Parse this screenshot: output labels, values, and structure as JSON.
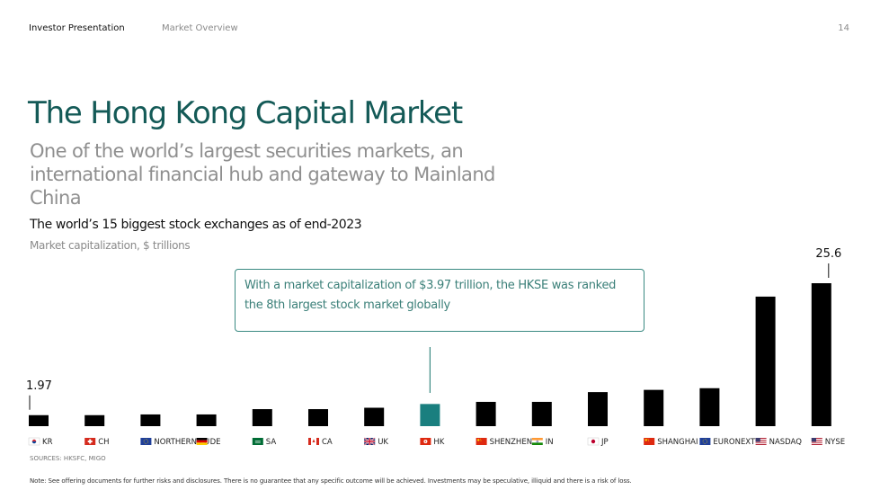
{
  "header": {
    "doc_title": "Investor Presentation",
    "section": "Market Overview",
    "page_number": "14"
  },
  "slide": {
    "title": "The Hong Kong Capital Market",
    "subtitle": "One of the world’s largest securities markets, an international financial hub and gateway to Mainland China"
  },
  "callout": {
    "text": "With a market capitalization of $3.97 trillion, the HKSE was ranked the 8th largest stock market globally"
  },
  "chart_data": {
    "type": "bar",
    "title": "The world’s 15 biggest stock exchanges as of end-2023",
    "subtitle": "Market capitalization, $ trillions",
    "categories": [
      "KR",
      "CH",
      "NORTHERN EU",
      "DE",
      "SA",
      "CA",
      "UK",
      "HK",
      "SHENZHEN",
      "IN",
      "JP",
      "SHANGHAI",
      "EURONEXT",
      "NASDAQ",
      "NYSE"
    ],
    "values": [
      1.97,
      1.97,
      2.1,
      2.1,
      3.05,
      3.05,
      3.3,
      3.97,
      4.35,
      4.35,
      6.1,
      6.5,
      6.8,
      23.2,
      25.6
    ],
    "data_labels": [
      {
        "category": "KR",
        "text": "1.97"
      },
      {
        "category": "NYSE",
        "text": "25.6"
      }
    ],
    "highlight": "HK",
    "flags": [
      "kr-flag-icon",
      "ch-flag-icon",
      "eu-flag-icon",
      "de-flag-icon",
      "sa-flag-icon",
      "ca-flag-icon",
      "uk-flag-icon",
      "hk-flag-icon",
      "cn-flag-icon",
      "in-flag-icon",
      "jp-flag-icon",
      "cn-flag-icon",
      "eu-flag-icon",
      "us-flag-icon",
      "us-flag-icon"
    ],
    "colors": {
      "bar": "#000000",
      "highlight": "#1a7f7f"
    },
    "ylim": [
      0,
      25.6
    ],
    "grid": false,
    "legend": "none"
  },
  "footer": {
    "sources": "SOURCES: HKSFC, MIGO",
    "note": "Note: See offering documents for further risks and disclosures. There is no guarantee that any specific outcome will be achieved. Investments may be speculative, illiquid and there is a risk of loss."
  }
}
